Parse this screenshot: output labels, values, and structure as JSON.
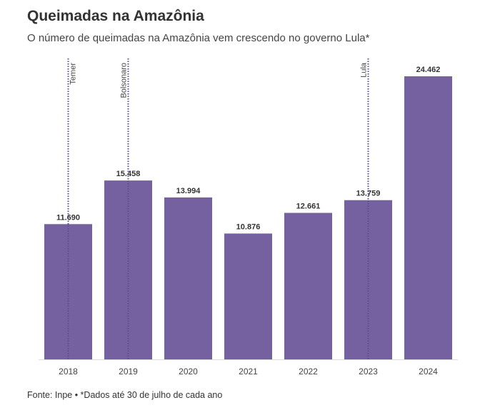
{
  "title": "Queimadas na Amazônia",
  "subtitle": "O número de queimadas na Amazônia vem crescendo no governo Lula*",
  "source": "Fonte: Inpe • *Dados até 30 de julho de cada ano",
  "chart_data": {
    "type": "bar",
    "categories": [
      "2018",
      "2019",
      "2020",
      "2021",
      "2022",
      "2023",
      "2024"
    ],
    "values": [
      11690,
      15458,
      13994,
      10876,
      12661,
      13759,
      24462
    ],
    "value_labels": [
      "11.690",
      "15.458",
      "13.994",
      "10.876",
      "12.661",
      "13.759",
      "24.462"
    ],
    "ylim": [
      0,
      24462
    ],
    "grid": false,
    "bar_color": "#7661a0",
    "annotations": [
      {
        "category": "2018",
        "label": "Temer",
        "side": "right"
      },
      {
        "category": "2019",
        "label": "Bolsonaro",
        "side": "left"
      },
      {
        "category": "2023",
        "label": "Lula",
        "side": "left"
      }
    ],
    "annotation_color": "#5b4a8a"
  }
}
